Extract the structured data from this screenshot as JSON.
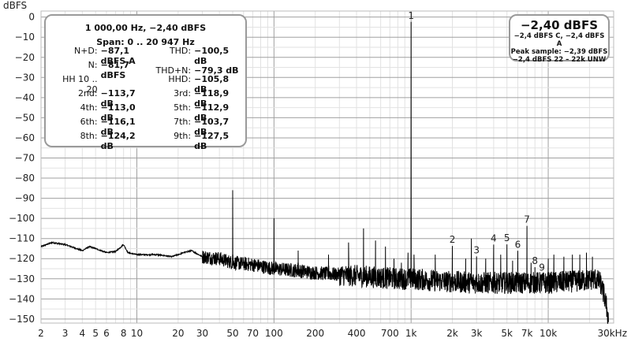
{
  "chart_data": {
    "type": "line",
    "title": "",
    "xlabel": "",
    "ylabel": "dBFS",
    "x_scale": "log",
    "xlim": [
      2,
      30000
    ],
    "ylim": [
      -152,
      3
    ],
    "grid": true,
    "y_ticks": [
      0,
      -10,
      -20,
      -30,
      -40,
      -50,
      -60,
      -70,
      -80,
      -90,
      -100,
      -110,
      -120,
      -130,
      -140,
      -150
    ],
    "x_ticks": [
      {
        "value": 2,
        "label": "2"
      },
      {
        "value": 3,
        "label": "3"
      },
      {
        "value": 4,
        "label": "4"
      },
      {
        "value": 5,
        "label": "5"
      },
      {
        "value": 6,
        "label": "6"
      },
      {
        "value": 8,
        "label": "8"
      },
      {
        "value": 10,
        "label": "10"
      },
      {
        "value": 20,
        "label": "20"
      },
      {
        "value": 30,
        "label": "30"
      },
      {
        "value": 50,
        "label": "50"
      },
      {
        "value": 70,
        "label": "70"
      },
      {
        "value": 100,
        "label": "100"
      },
      {
        "value": 200,
        "label": "200"
      },
      {
        "value": 400,
        "label": "400"
      },
      {
        "value": 700,
        "label": "700"
      },
      {
        "value": 1000,
        "label": "1k"
      },
      {
        "value": 2000,
        "label": "2k"
      },
      {
        "value": 3000,
        "label": "3k"
      },
      {
        "value": 5000,
        "label": "5k"
      },
      {
        "value": 7000,
        "label": "7k"
      },
      {
        "value": 10000,
        "label": "10k"
      },
      {
        "value": 30000,
        "label": "30kHz"
      }
    ],
    "noise_floor": [
      [
        2,
        -114
      ],
      [
        2.4,
        -112
      ],
      [
        3,
        -113
      ],
      [
        4,
        -116
      ],
      [
        4.5,
        -114
      ],
      [
        5,
        -115
      ],
      [
        6,
        -117
      ],
      [
        7,
        -116.5
      ],
      [
        8,
        -113
      ],
      [
        8.6,
        -117
      ],
      [
        10,
        -118
      ],
      [
        14,
        -118
      ],
      [
        18,
        -119
      ],
      [
        22,
        -117
      ],
      [
        25,
        -116
      ],
      [
        30,
        -119
      ],
      [
        40,
        -120
      ],
      [
        50,
        -122
      ],
      [
        70,
        -123
      ],
      [
        100,
        -125
      ],
      [
        150,
        -126
      ],
      [
        200,
        -127
      ],
      [
        300,
        -128
      ],
      [
        500,
        -129
      ],
      [
        800,
        -130
      ],
      [
        1000,
        -130
      ],
      [
        1500,
        -131
      ],
      [
        3000,
        -132
      ],
      [
        5000,
        -132
      ],
      [
        10000,
        -132
      ],
      [
        18000,
        -131
      ],
      [
        22000,
        -130
      ],
      [
        24000,
        -132
      ],
      [
        26000,
        -140
      ],
      [
        27500,
        -150
      ]
    ],
    "peaks": [
      {
        "freq": 50,
        "level": -86
      },
      {
        "freq": 100,
        "level": -100
      },
      {
        "freq": 150,
        "level": -116
      },
      {
        "freq": 250,
        "level": -118
      },
      {
        "freq": 350,
        "level": -112
      },
      {
        "freq": 450,
        "level": -105
      },
      {
        "freq": 550,
        "level": -111
      },
      {
        "freq": 650,
        "level": -114
      },
      {
        "freq": 750,
        "level": -120
      },
      {
        "freq": 850,
        "level": -122
      },
      {
        "freq": 950,
        "level": -117
      },
      {
        "freq": 1000,
        "level": -2.4
      },
      {
        "freq": 1050,
        "level": -118
      },
      {
        "freq": 1500,
        "level": -118
      },
      {
        "freq": 2000,
        "level": -113.7
      },
      {
        "freq": 2500,
        "level": -120
      },
      {
        "freq": 2750,
        "level": -110
      },
      {
        "freq": 3000,
        "level": -118.9
      },
      {
        "freq": 3500,
        "level": -120
      },
      {
        "freq": 4000,
        "level": -113.0
      },
      {
        "freq": 4500,
        "level": -118
      },
      {
        "freq": 5000,
        "level": -112.9
      },
      {
        "freq": 5500,
        "level": -121
      },
      {
        "freq": 6000,
        "level": -116.1
      },
      {
        "freq": 7000,
        "level": -103.7
      },
      {
        "freq": 7500,
        "level": -122
      },
      {
        "freq": 8000,
        "level": -124.2
      },
      {
        "freq": 9000,
        "level": -127.5
      },
      {
        "freq": 10000,
        "level": -120
      },
      {
        "freq": 11000,
        "level": -118
      },
      {
        "freq": 13000,
        "level": -119
      },
      {
        "freq": 15000,
        "level": -118
      },
      {
        "freq": 17000,
        "level": -118
      },
      {
        "freq": 19000,
        "level": -117
      },
      {
        "freq": 21000,
        "level": -119
      }
    ],
    "harmonic_labels": [
      {
        "label": "1",
        "freq": 1000,
        "level": -2.4
      },
      {
        "label": "2",
        "freq": 2000,
        "level": -113.7
      },
      {
        "label": "3",
        "freq": 3000,
        "level": -118.9
      },
      {
        "label": "4",
        "freq": 4000,
        "level": -113.0
      },
      {
        "label": "5",
        "freq": 5000,
        "level": -112.9
      },
      {
        "label": "6",
        "freq": 6000,
        "level": -116.1
      },
      {
        "label": "7",
        "freq": 7000,
        "level": -103.7
      },
      {
        "label": "8",
        "freq": 8000,
        "level": -124.2
      },
      {
        "label": "9",
        "freq": 9000,
        "level": -127.5
      }
    ]
  },
  "info": {
    "header": "1 000,00 Hz, −2,40 dBFS",
    "span": "Span: 0 .. 20 947 Hz",
    "rows": [
      {
        "k1": "N+D:",
        "v1": "−87,1 dBFS A",
        "k2": "THD:",
        "v2": "−100,5 dB"
      },
      {
        "k1": "N:",
        "v1": "−81,7 dBFS",
        "k2": "THD+N:",
        "v2": "−79,3 dB"
      },
      {
        "k1": "HH 10 .. 20",
        "v1": "",
        "k2": "HHD:",
        "v2": "−105,8 dB"
      },
      {
        "k1": "2nd:",
        "v1": "−113,7 dB",
        "k2": "3rd:",
        "v2": "−118,9 dB"
      },
      {
        "k1": "4th:",
        "v1": "−113,0 dB",
        "k2": "5th:",
        "v2": "−112,9 dB"
      },
      {
        "k1": "6th:",
        "v1": "−116,1 dB",
        "k2": "7th:",
        "v2": "−103,7 dB"
      },
      {
        "k1": "8th:",
        "v1": "−124,2 dB",
        "k2": "9th:",
        "v2": "−127,5 dB"
      }
    ]
  },
  "level": {
    "value": "−2,40 dBFS",
    "line1": "−2,4 dBFS C, −2,4 dBFS A",
    "line2": "Peak sample: −2,39 dBFS",
    "line3": "−2,4 dBFS 22 – 22k UNW"
  },
  "colors": {
    "trace": "#000000",
    "grid_major": "#a0a0a0",
    "grid_minor": "#e2e2e2",
    "box_border": "#9a9a9a"
  }
}
